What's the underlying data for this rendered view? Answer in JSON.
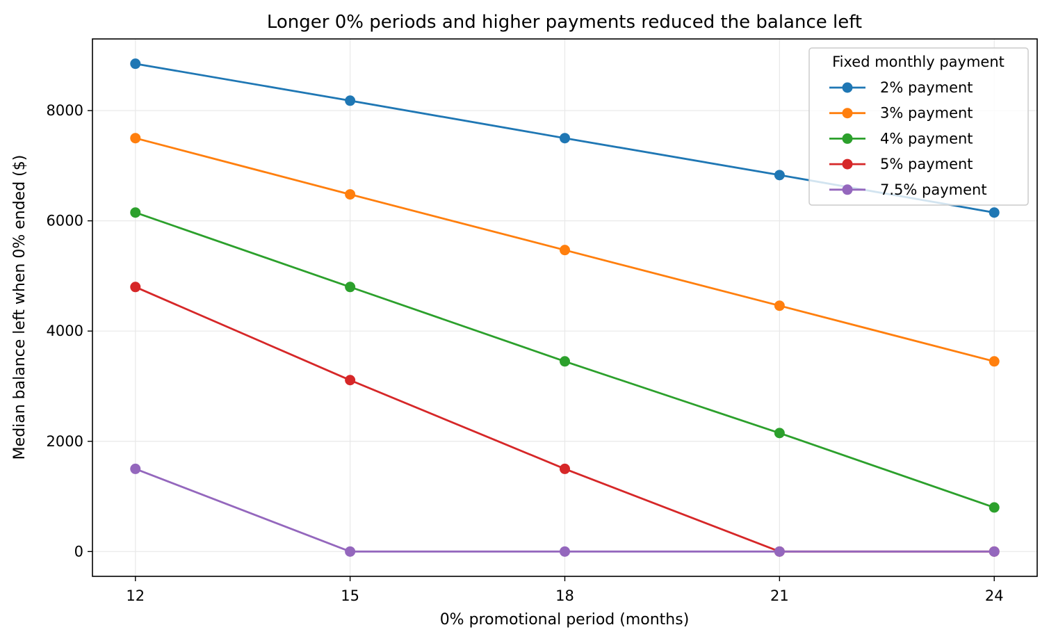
{
  "chart_data": {
    "type": "line",
    "title": "Longer 0% periods and higher payments reduced the balance left",
    "xlabel": "0% promotional period (months)",
    "ylabel": "Median balance left when 0% ended ($)",
    "x": [
      12,
      15,
      18,
      21,
      24
    ],
    "x_ticks": [
      "12",
      "15",
      "18",
      "21",
      "24"
    ],
    "y_ticks": [
      0,
      2000,
      4000,
      6000,
      8000
    ],
    "xlim": [
      11.4,
      24.6
    ],
    "ylim": [
      -450,
      9300
    ],
    "grid": true,
    "legend": {
      "title": "Fixed monthly payment",
      "placement": "top-right"
    },
    "series": [
      {
        "name": "2% payment",
        "color": "#1f77b4",
        "values": [
          8850,
          8180,
          7500,
          6830,
          6150
        ]
      },
      {
        "name": "3% payment",
        "color": "#ff7f0e",
        "values": [
          7500,
          6480,
          5470,
          4460,
          3450
        ]
      },
      {
        "name": "4% payment",
        "color": "#2ca02c",
        "values": [
          6150,
          4800,
          3450,
          2150,
          800
        ]
      },
      {
        "name": "5% payment",
        "color": "#d62728",
        "values": [
          4800,
          3110,
          1500,
          0,
          0
        ]
      },
      {
        "name": "7.5% payment",
        "color": "#9467bd",
        "values": [
          1500,
          0,
          0,
          0,
          0
        ]
      }
    ]
  }
}
